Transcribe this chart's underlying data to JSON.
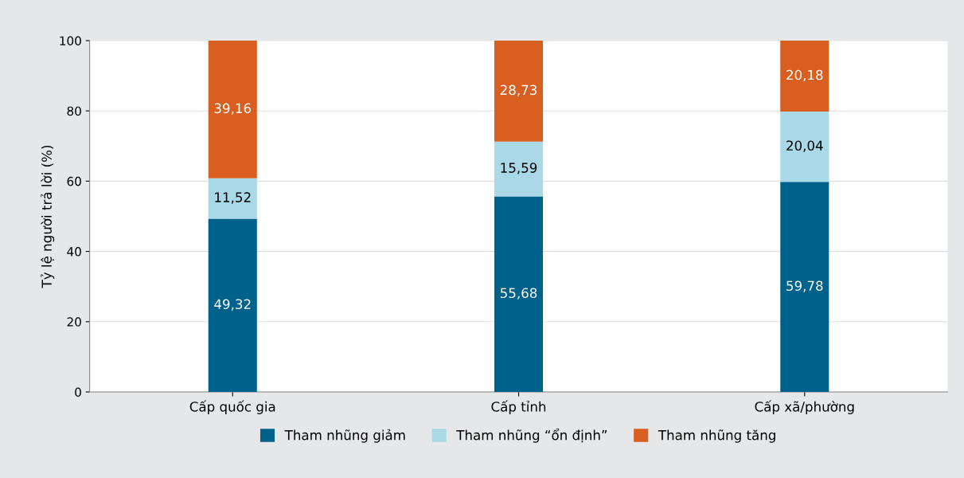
{
  "chart_data": {
    "type": "bar",
    "stacked": true,
    "ylabel": "Tỷ lệ người trả lời (%)",
    "categories": [
      "Cấp quốc gia",
      "Cấp tỉnh",
      "Cấp xã/phường"
    ],
    "series": [
      {
        "name": "Tham nhũng giảm",
        "color": "#00628b",
        "values": [
          49.32,
          55.68,
          59.78
        ],
        "value_labels": [
          "49,32",
          "55,68",
          "59,78"
        ]
      },
      {
        "name": "Tham nhũng “ổn định”",
        "color": "#a9d8e6",
        "values": [
          11.52,
          15.59,
          20.04
        ],
        "value_labels": [
          "11,52",
          "15,59",
          "20,04"
        ]
      },
      {
        "name": "Tham nhũng tăng",
        "color": "#d95f20",
        "values": [
          39.16,
          28.73,
          20.18
        ],
        "value_labels": [
          "39,16",
          "28,73",
          "20,18"
        ]
      }
    ],
    "ylim": [
      0,
      100
    ],
    "yticks": [
      0,
      20,
      40,
      60,
      80,
      100
    ],
    "grid": "y",
    "legend": "bottom"
  }
}
